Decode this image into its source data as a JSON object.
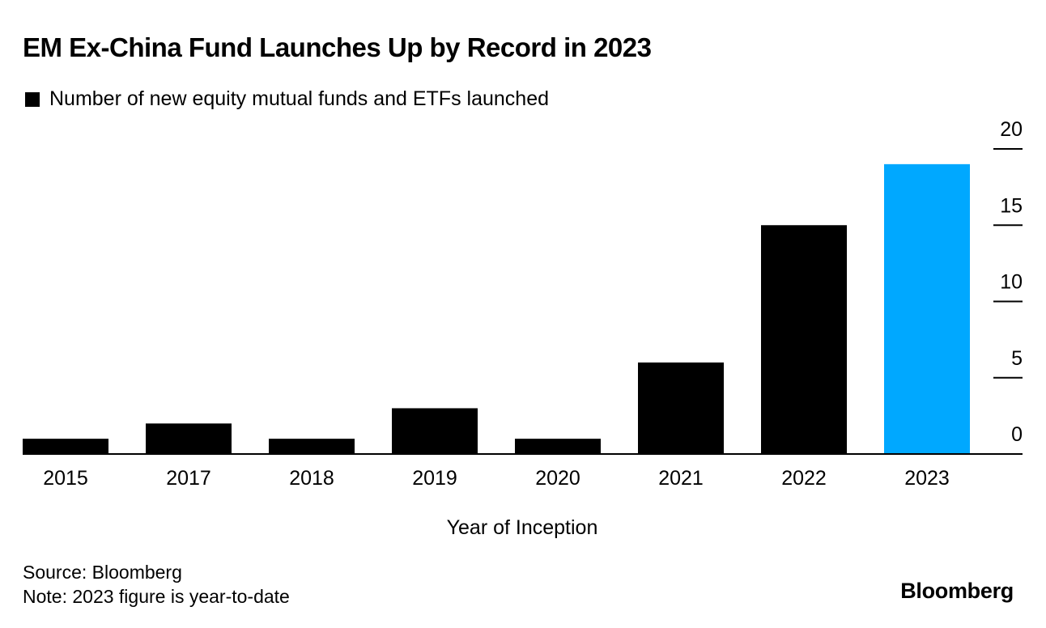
{
  "chart_data": {
    "type": "bar",
    "title": "EM Ex-China Fund Launches Up by Record in 2023",
    "legend": [
      "Number of new equity mutual funds and ETFs launched"
    ],
    "legend_position": "top-left",
    "categories": [
      "2015",
      "2017",
      "2018",
      "2019",
      "2020",
      "2021",
      "2022",
      "2023"
    ],
    "values": [
      1,
      2,
      1,
      3,
      1,
      6,
      15,
      19
    ],
    "xlabel": "Year of Inception",
    "ylabel": "",
    "ylim": [
      0,
      20
    ],
    "yticks": [
      "0",
      "5",
      "10",
      "15",
      "20"
    ],
    "y_axis_side": "right",
    "grid": false,
    "colors": {
      "default_bar": "#000000",
      "highlight_bar": "#00a8ff",
      "highlight_category": "2023"
    }
  },
  "footer": {
    "source": "Source: Bloomberg",
    "note": "Note: 2023 figure is year-to-date"
  },
  "brand": {
    "logo": "Bloomberg"
  }
}
